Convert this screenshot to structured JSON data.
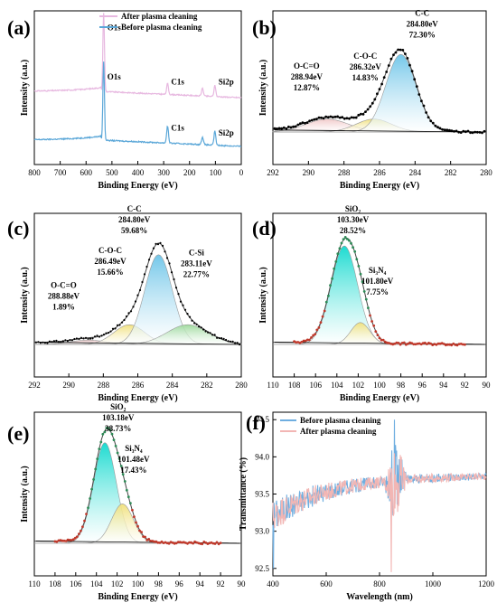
{
  "colors": {
    "after_line": "#E7B8E0",
    "before_line": "#5BA7D8",
    "trans_before": "#6FAEE0",
    "trans_after": "#F2B6B4",
    "fit_fill_blue": "#6CC4E8",
    "fit_fill_cyan": "#11D9CE",
    "fit_fill_yellow": "#F0E07A",
    "fit_fill_green": "#9BD99A",
    "fit_fill_pink": "#F1C7C7",
    "envelope": "#444444",
    "point_red": "#C0392B",
    "point_black": "#000000",
    "point_green": "#2E8B57"
  },
  "chart_data": [
    {
      "panel": "(a)",
      "type": "line",
      "xlabel": "Binding Energy (eV)",
      "ylabel": "Intensity (a.u.)",
      "xlim": [
        800,
        0
      ],
      "x_ticks": [
        800,
        700,
        600,
        500,
        400,
        300,
        200,
        100,
        0
      ],
      "legend_position": "top-right",
      "series": [
        {
          "name": "After plasma cleaning",
          "color_key": "after_line",
          "peaks": [
            [
              532,
              1.0
            ],
            [
              285,
              0.14
            ],
            [
              150,
              0.1
            ],
            [
              102,
              0.14
            ]
          ],
          "offset": 0.62
        },
        {
          "name": "Before plasma cleaning",
          "color_key": "before_line",
          "peaks": [
            [
              532,
              1.0
            ],
            [
              285,
              0.22
            ],
            [
              150,
              0.1
            ],
            [
              102,
              0.18
            ]
          ],
          "offset": 0.0
        }
      ],
      "annotations": [
        {
          "text": "O1s",
          "x": 532,
          "y": 1.55
        },
        {
          "text": "C1s",
          "x": 285,
          "y": 0.86
        },
        {
          "text": "Si2p",
          "x": 102,
          "y": 0.86
        },
        {
          "text": "O1s",
          "x": 532,
          "y": 0.92
        },
        {
          "text": "C1s",
          "x": 285,
          "y": 0.27
        },
        {
          "text": "Si2p",
          "x": 102,
          "y": 0.21
        }
      ]
    },
    {
      "panel": "(b)",
      "type": "area",
      "xlabel": "Binding Energy (eV)",
      "ylabel": "Intensity (a.u.)",
      "xlim": [
        292,
        280
      ],
      "x_ticks": [
        292,
        290,
        288,
        286,
        284,
        282,
        280
      ],
      "peaks": [
        {
          "name": "O-C=O",
          "center": 288.94,
          "area_pct": 12.87,
          "height": 0.13,
          "width": 1.2,
          "color_key": "fit_fill_pink"
        },
        {
          "name": "C-O-C",
          "center": 286.32,
          "area_pct": 14.83,
          "height": 0.13,
          "width": 1.0,
          "color_key": "fit_fill_yellow"
        },
        {
          "name": "C-C",
          "center": 284.8,
          "area_pct": 72.3,
          "height": 0.78,
          "width": 0.85,
          "color_key": "fit_fill_blue"
        }
      ],
      "labels": [
        {
          "lines": [
            "C-C",
            "284.80eV",
            "72.30%"
          ],
          "x": 283.6,
          "y": 0.93
        },
        {
          "lines": [
            "C-O-C",
            "286.32eV",
            "14.83%"
          ],
          "x": 286.8,
          "y": 0.5
        },
        {
          "lines": [
            "O-C=O",
            "288.94eV",
            "12.87%"
          ],
          "x": 290.1,
          "y": 0.4
        }
      ]
    },
    {
      "panel": "(c)",
      "type": "area",
      "xlabel": "Binding Energy (eV)",
      "ylabel": "Intensity (a.u.)",
      "xlim": [
        292,
        280
      ],
      "x_ticks": [
        292,
        290,
        288,
        286,
        284,
        282,
        280
      ],
      "peaks": [
        {
          "name": "O-C=O",
          "center": 288.88,
          "area_pct": 1.89,
          "height": 0.04,
          "width": 1.0,
          "color_key": "fit_fill_pink"
        },
        {
          "name": "C-O-C",
          "center": 286.49,
          "area_pct": 15.66,
          "height": 0.18,
          "width": 0.9,
          "color_key": "fit_fill_yellow"
        },
        {
          "name": "C-C",
          "center": 284.8,
          "area_pct": 59.68,
          "height": 0.82,
          "width": 0.8,
          "color_key": "fit_fill_blue"
        },
        {
          "name": "C-Si",
          "center": 283.11,
          "area_pct": 22.77,
          "height": 0.18,
          "width": 1.2,
          "color_key": "fit_fill_green"
        }
      ],
      "labels": [
        {
          "lines": [
            "C-C",
            "284.80eV",
            "59.68%"
          ],
          "x": 286.2,
          "y": 1.0
        },
        {
          "lines": [
            "C-O-C",
            "286.49eV",
            "15.66%"
          ],
          "x": 287.6,
          "y": 0.62
        },
        {
          "lines": [
            "C-Si",
            "283.11eV",
            "22.77%"
          ],
          "x": 282.6,
          "y": 0.6
        },
        {
          "lines": [
            "O-C=O",
            "288.88eV",
            "1.89%"
          ],
          "x": 290.3,
          "y": 0.3
        }
      ]
    },
    {
      "panel": "(d)",
      "type": "area",
      "xlabel": "Binding Energy (eV)",
      "ylabel": "Intensity (a.u.)",
      "xlim": [
        110,
        90
      ],
      "x_ticks": [
        110,
        108,
        106,
        104,
        102,
        100,
        98,
        96,
        94,
        92,
        90
      ],
      "peaks": [
        {
          "name": "SiO₂",
          "center": 103.3,
          "area_pct": 28.52,
          "height": 0.9,
          "width": 1.25,
          "color_key": "fit_fill_cyan"
        },
        {
          "name": "Si₃N₄",
          "center": 101.8,
          "area_pct": 7.75,
          "height": 0.2,
          "width": 0.9,
          "color_key": "fit_fill_yellow"
        }
      ],
      "labels": [
        {
          "lines": [
            "SiO₂",
            "103.30eV",
            "28.52%"
          ],
          "x": 102.5,
          "y": 1.0
        },
        {
          "lines": [
            "Si₃N₄",
            "101.80eV",
            "7.75%"
          ],
          "x": 100.2,
          "y": 0.44
        }
      ]
    },
    {
      "panel": "(e)",
      "type": "area",
      "xlabel": "Binding Energy (eV)",
      "ylabel": "Intensity (a.u.)",
      "xlim": [
        110,
        90
      ],
      "x_ticks": [
        110,
        108,
        106,
        104,
        102,
        100,
        98,
        96,
        94,
        92,
        90
      ],
      "peaks": [
        {
          "name": "SiO₂",
          "center": 103.18,
          "area_pct": 38.73,
          "height": 0.92,
          "width": 1.1,
          "color_key": "fit_fill_cyan"
        },
        {
          "name": "Si₃N₄",
          "center": 101.48,
          "area_pct": 17.43,
          "height": 0.36,
          "width": 1.05,
          "color_key": "fit_fill_yellow"
        }
      ],
      "labels": [
        {
          "lines": [
            "SiO₂",
            "103.18eV",
            "38.73%"
          ],
          "x": 101.9,
          "y": 1.01
        },
        {
          "lines": [
            "Si₃N₄",
            "101.48eV",
            "17.43%"
          ],
          "x": 100.4,
          "y": 0.63
        }
      ]
    },
    {
      "panel": "(f)",
      "type": "line",
      "xlabel": "Wavelength (nm)",
      "ylabel": "Transmittance (%)",
      "xlim": [
        400,
        1200
      ],
      "ylim": [
        92.4,
        94.6
      ],
      "x_ticks": [
        400,
        600,
        800,
        1000,
        1200
      ],
      "y_ticks": [
        92.5,
        93.0,
        93.5,
        94.0,
        94.5
      ],
      "legend_position": "top-left",
      "series": [
        {
          "name": "Before plasma cleaning",
          "color_key": "trans_before"
        },
        {
          "name": "After plasma cleaning",
          "color_key": "trans_after"
        }
      ]
    }
  ]
}
